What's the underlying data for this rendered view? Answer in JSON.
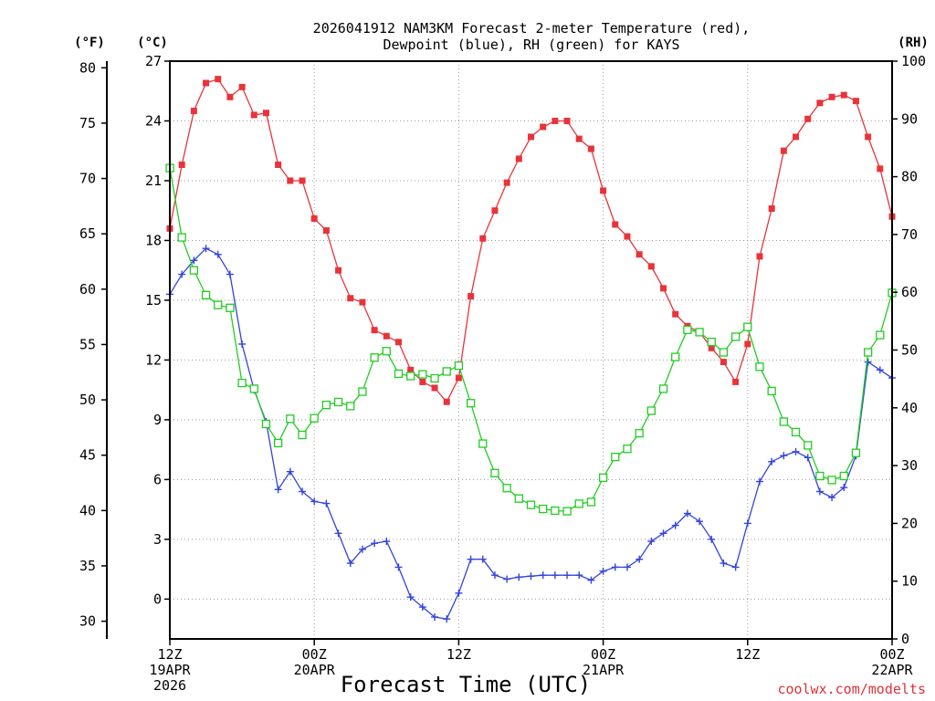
{
  "chart_data": {
    "type": "line",
    "title_line1": "2026041912 NAM3KM Forecast 2-meter Temperature (red),",
    "title_line2": "Dewpoint (blue), RH (green) for KAYS",
    "xlabel": "Forecast Time (UTC)",
    "credit": "coolwx.com/modelts",
    "unit_left_f": "(°F)",
    "unit_left_c": "(°C)",
    "unit_right": "(RH)",
    "x_hours_range": [
      0,
      60
    ],
    "c_range": [
      -2,
      27
    ],
    "f_range": [
      28.4,
      80.6
    ],
    "rh_range": [
      0,
      100
    ],
    "c_ticks": [
      "27",
      "24",
      "21",
      "18",
      "15",
      "12",
      "9",
      "6",
      "3",
      "0"
    ],
    "c_tick_values": [
      27,
      24,
      21,
      18,
      15,
      12,
      9,
      6,
      3,
      0
    ],
    "f_ticks": [
      "80",
      "75",
      "70",
      "65",
      "60",
      "55",
      "50",
      "45",
      "40",
      "35",
      "30"
    ],
    "f_tick_values": [
      80,
      75,
      70,
      65,
      60,
      55,
      50,
      45,
      40,
      35,
      30
    ],
    "rh_ticks": [
      "100",
      "90",
      "80",
      "70",
      "60",
      "50",
      "40",
      "30",
      "20",
      "10",
      "0"
    ],
    "rh_tick_values": [
      100,
      90,
      80,
      70,
      60,
      50,
      40,
      30,
      20,
      10,
      0
    ],
    "x_ticks": [
      {
        "hour": 0,
        "lines": [
          "12Z",
          "19APR",
          "2026"
        ]
      },
      {
        "hour": 12,
        "lines": [
          "00Z",
          "20APR"
        ]
      },
      {
        "hour": 24,
        "lines": [
          "12Z"
        ]
      },
      {
        "hour": 36,
        "lines": [
          "00Z",
          "21APR"
        ]
      },
      {
        "hour": 48,
        "lines": [
          "12Z"
        ]
      },
      {
        "hour": 60,
        "lines": [
          "00Z",
          "22APR"
        ]
      }
    ],
    "series": [
      {
        "name": "2-meter Temperature",
        "unit": "C",
        "color": "#e8333a",
        "marker": "filled-square",
        "x": [
          0,
          1,
          2,
          3,
          4,
          5,
          6,
          7,
          8,
          9,
          10,
          11,
          12,
          13,
          14,
          15,
          16,
          17,
          18,
          19,
          20,
          21,
          22,
          23,
          24,
          25,
          26,
          27,
          28,
          29,
          30,
          31,
          32,
          33,
          34,
          35,
          36,
          37,
          38,
          39,
          40,
          41,
          42,
          43,
          44,
          45,
          46,
          47,
          48,
          49,
          50,
          51,
          52,
          53,
          54,
          55,
          56,
          57,
          58,
          59,
          60
        ],
        "values": [
          18.6,
          21.8,
          24.5,
          25.9,
          26.1,
          25.2,
          25.7,
          24.3,
          24.4,
          21.8,
          21.0,
          21.0,
          19.1,
          18.5,
          16.5,
          15.1,
          14.9,
          13.5,
          13.2,
          12.9,
          11.5,
          10.9,
          10.6,
          9.9,
          11.1,
          15.2,
          18.1,
          19.5,
          20.9,
          22.1,
          23.2,
          23.7,
          24.0,
          24.0,
          23.1,
          22.6,
          20.5,
          18.8,
          18.2,
          17.3,
          16.7,
          15.6,
          14.3,
          13.7,
          13.4,
          12.6,
          11.9,
          10.9,
          12.8,
          17.2,
          19.6,
          22.5,
          23.2,
          24.1,
          24.9,
          25.2,
          25.3,
          25.0,
          23.2,
          21.6,
          19.2
        ]
      },
      {
        "name": "Dewpoint",
        "unit": "C",
        "color": "#3344dd",
        "marker": "plus",
        "x": [
          0,
          1,
          2,
          3,
          4,
          5,
          6,
          7,
          8,
          9,
          10,
          11,
          12,
          13,
          14,
          15,
          16,
          17,
          18,
          19,
          20,
          21,
          22,
          23,
          24,
          25,
          26,
          27,
          28,
          29,
          30,
          31,
          32,
          33,
          34,
          35,
          36,
          37,
          38,
          39,
          40,
          41,
          42,
          43,
          44,
          45,
          46,
          47,
          48,
          49,
          50,
          51,
          52,
          53,
          54,
          55,
          56,
          57,
          58,
          59,
          60
        ],
        "values": [
          15.3,
          16.3,
          17.0,
          17.6,
          17.3,
          16.3,
          12.8,
          10.5,
          8.9,
          5.5,
          6.4,
          5.4,
          4.9,
          4.8,
          3.3,
          1.8,
          2.5,
          2.8,
          2.9,
          1.6,
          0.1,
          -0.4,
          -0.9,
          -1.0,
          0.3,
          2.0,
          2.0,
          1.2,
          1.0,
          1.1,
          1.15,
          1.2,
          1.2,
          1.2,
          1.2,
          0.95,
          1.4,
          1.6,
          1.6,
          2.0,
          2.9,
          3.3,
          3.7,
          4.3,
          3.9,
          3.0,
          1.8,
          1.6,
          3.8,
          5.9,
          6.9,
          7.2,
          7.4,
          7.1,
          5.4,
          5.1,
          5.6,
          7.2,
          11.9,
          11.5,
          11.1
        ]
      },
      {
        "name": "RH",
        "unit": "%",
        "color": "#22cc22",
        "marker": "open-square",
        "x": [
          0,
          1,
          2,
          3,
          4,
          5,
          6,
          7,
          8,
          9,
          10,
          11,
          12,
          13,
          14,
          15,
          16,
          17,
          18,
          19,
          20,
          21,
          22,
          23,
          24,
          25,
          26,
          27,
          28,
          29,
          30,
          31,
          32,
          33,
          34,
          35,
          36,
          37,
          38,
          39,
          40,
          41,
          42,
          43,
          44,
          45,
          46,
          47,
          48,
          49,
          50,
          51,
          52,
          53,
          54,
          55,
          56,
          57,
          58,
          59,
          60
        ],
        "values": [
          81.5,
          69.5,
          63.8,
          59.5,
          57.8,
          57.3,
          44.3,
          43.3,
          37.2,
          33.9,
          38.1,
          35.3,
          38.2,
          40.5,
          41.0,
          40.3,
          42.8,
          48.7,
          49.8,
          45.9,
          45.5,
          45.8,
          45.1,
          46.3,
          47.3,
          40.8,
          33.8,
          28.7,
          26.1,
          24.3,
          23.2,
          22.5,
          22.2,
          22.1,
          23.4,
          23.7,
          27.9,
          31.5,
          32.9,
          35.6,
          39.5,
          43.3,
          48.8,
          53.5,
          53.1,
          51.4,
          49.6,
          52.3,
          54.0,
          47.1,
          42.9,
          37.6,
          35.8,
          33.5,
          28.2,
          27.5,
          28.2,
          32.2,
          49.6,
          52.6,
          59.9
        ]
      }
    ]
  }
}
